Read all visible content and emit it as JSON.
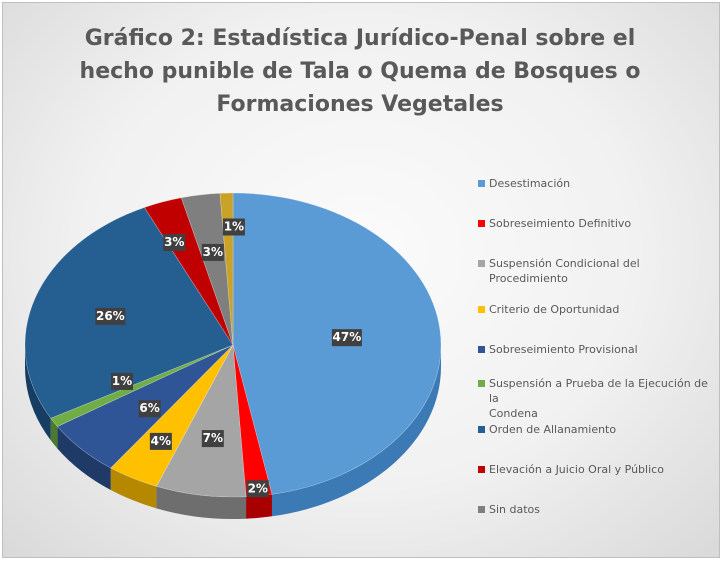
{
  "chart_data": {
    "type": "pie",
    "title_lines": [
      "Gráfico 2: Estadística Jurídico-Penal sobre el",
      "hecho punible de Tala o Quema de Bosques o",
      "Formaciones Vegetales"
    ],
    "legend_position": "right",
    "slices": [
      {
        "name": "Desestimación",
        "value": 47,
        "label": "47%",
        "color": "#5b9bd5",
        "side": "#3c7ab5",
        "legend_lines": [
          "Desestimación"
        ]
      },
      {
        "name": "Sobreseimiento Definitivo",
        "value": 2,
        "label": "2%",
        "color": "#ff0000",
        "side": "#a80000",
        "legend_lines": [
          "Sobreseimiento Definitivo"
        ]
      },
      {
        "name": "Suspensión Condicional del Procedimiento",
        "value": 7,
        "label": "7%",
        "color": "#a5a5a5",
        "side": "#6e6e6e",
        "legend_lines": [
          "Suspensión Condicional del",
          "Procedimiento"
        ]
      },
      {
        "name": "Criterio de Oportunidad",
        "value": 4,
        "label": "4%",
        "color": "#ffc000",
        "side": "#b58800",
        "legend_lines": [
          "Criterio de Oportunidad"
        ]
      },
      {
        "name": "Sobreseimiento Provisional",
        "value": 6,
        "label": "6%",
        "color": "#2f5597",
        "side": "#1f3a66",
        "legend_lines": [
          "Sobreseimiento Provisional"
        ]
      },
      {
        "name": "Suspensión a Prueba de la Ejecución de la Condena",
        "value": 1,
        "label": "1%",
        "color": "#70ad47",
        "side": "#4b7a2e",
        "legend_lines": [
          "Suspensión a Prueba de la Ejecución de la",
          "Condena"
        ]
      },
      {
        "name": "Orden de Allanamiento",
        "value": 26,
        "label": "26%",
        "color": "#255e91",
        "side": "#173e62",
        "legend_lines": [
          "Orden de Allanamiento"
        ]
      },
      {
        "name": "Elevación a Juicio Oral y Público",
        "value": 3,
        "label": "3%",
        "color": "#c00000",
        "side": "#7a0000",
        "legend_lines": [
          "Elevación a Juicio Oral y Público"
        ]
      },
      {
        "name": "Sin datos",
        "value": 3,
        "label": "3%",
        "color": "#7f7f7f",
        "side": "#4f4f4f",
        "legend_lines": [
          "Sin datos"
        ]
      },
      {
        "name": "",
        "value": 1,
        "label": "1%",
        "color": "#c9a227",
        "side": "#8a6d14",
        "legend_lines": []
      }
    ]
  }
}
